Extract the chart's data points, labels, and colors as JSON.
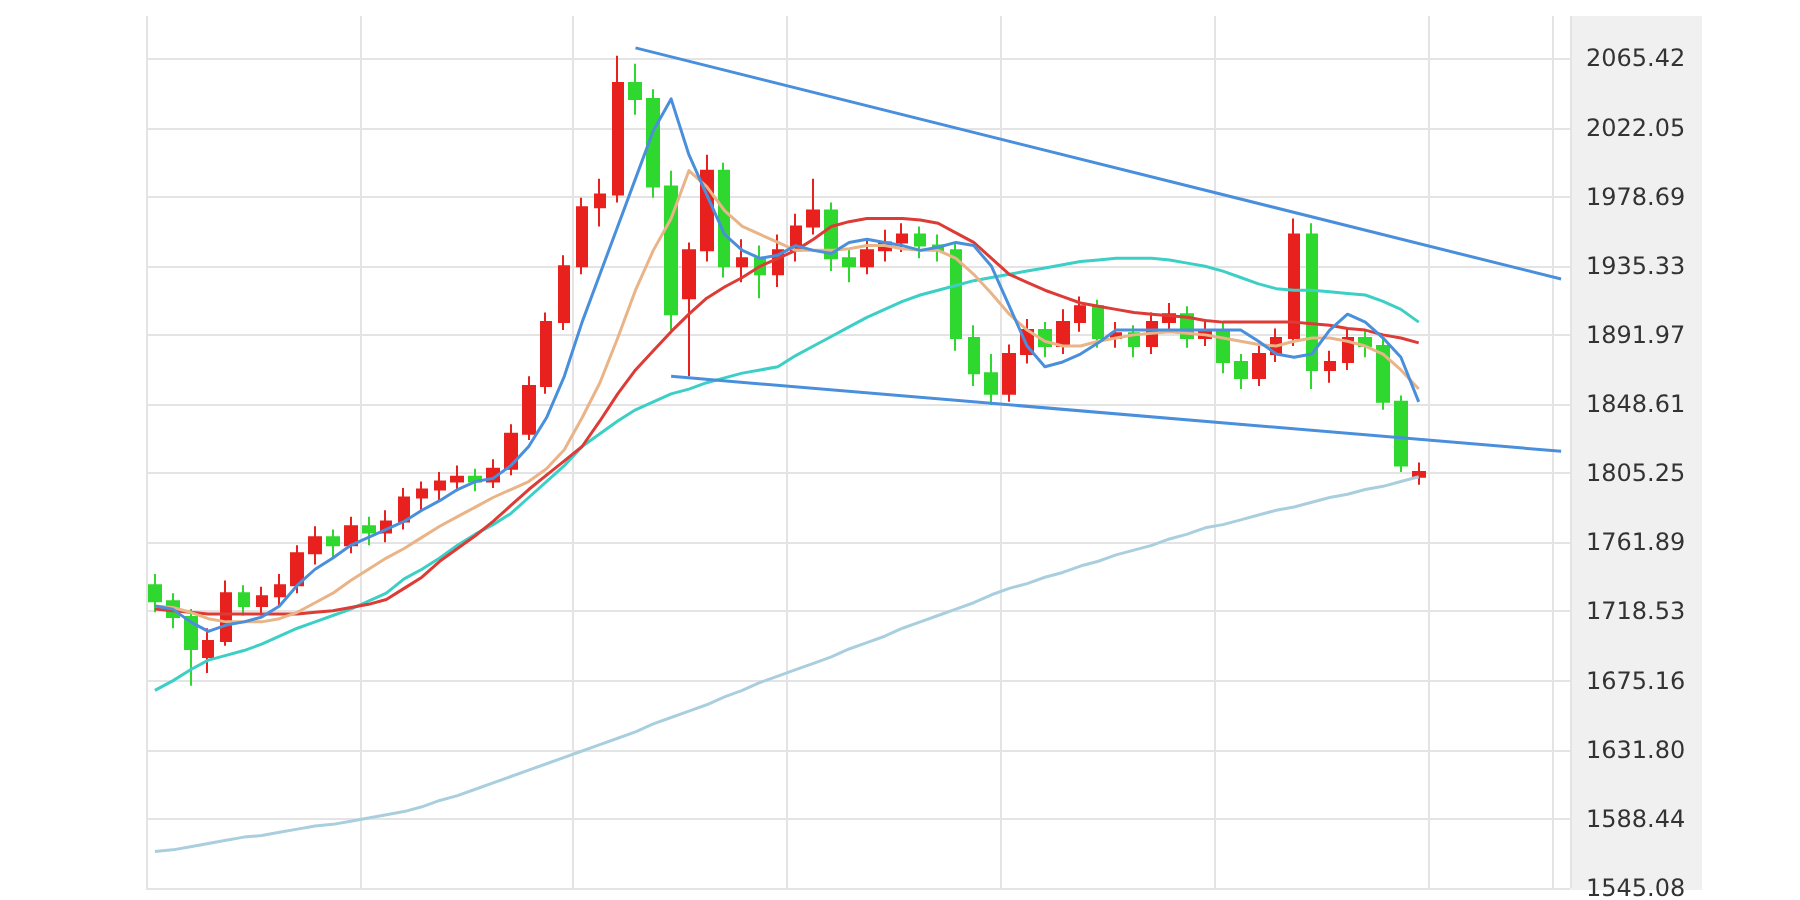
{
  "chart_data": {
    "type": "candlestick",
    "categories": [
      null,
      null,
      null,
      null,
      null,
      null,
      null,
      null,
      null,
      null,
      null,
      null,
      null,
      null,
      null,
      null,
      null,
      null,
      null,
      null,
      null,
      null,
      null,
      null,
      null,
      null,
      null,
      null,
      null,
      null,
      null,
      null,
      null,
      null,
      null,
      null,
      null,
      null,
      null,
      null,
      null,
      null,
      null,
      null,
      null,
      null,
      null,
      null,
      null,
      null,
      null,
      null,
      null,
      null,
      null,
      null,
      null,
      null,
      null,
      null,
      null,
      null,
      null,
      null,
      null,
      null,
      null,
      null,
      null,
      null,
      null,
      null,
      null,
      null,
      null,
      null,
      null,
      null,
      null,
      null
    ],
    "ohlc": [
      [
        1735,
        1742,
        1718,
        1725
      ],
      [
        1725,
        1730,
        1708,
        1715
      ],
      [
        1715,
        1720,
        1672,
        1695
      ],
      [
        1690,
        1708,
        1680,
        1700
      ],
      [
        1700,
        1738,
        1697,
        1730
      ],
      [
        1730,
        1735,
        1716,
        1722
      ],
      [
        1722,
        1734,
        1716,
        1728
      ],
      [
        1728,
        1742,
        1722,
        1735
      ],
      [
        1735,
        1760,
        1730,
        1755
      ],
      [
        1755,
        1772,
        1748,
        1765
      ],
      [
        1765,
        1770,
        1752,
        1760
      ],
      [
        1760,
        1778,
        1755,
        1772
      ],
      [
        1772,
        1778,
        1760,
        1768
      ],
      [
        1768,
        1782,
        1762,
        1775
      ],
      [
        1775,
        1796,
        1770,
        1790
      ],
      [
        1790,
        1800,
        1782,
        1795
      ],
      [
        1795,
        1806,
        1788,
        1800
      ],
      [
        1800,
        1810,
        1794,
        1803
      ],
      [
        1803,
        1808,
        1794,
        1800
      ],
      [
        1800,
        1814,
        1796,
        1808
      ],
      [
        1808,
        1836,
        1804,
        1830
      ],
      [
        1830,
        1866,
        1826,
        1860
      ],
      [
        1860,
        1906,
        1855,
        1900
      ],
      [
        1900,
        1942,
        1895,
        1935
      ],
      [
        1935,
        1978,
        1930,
        1972
      ],
      [
        1972,
        1990,
        1960,
        1980
      ],
      [
        1980,
        2067,
        1975,
        2050
      ],
      [
        2050,
        2062,
        2030,
        2040
      ],
      [
        2040,
        2046,
        1978,
        1985
      ],
      [
        1985,
        1995,
        1895,
        1905
      ],
      [
        1915,
        1950,
        1866,
        1945
      ],
      [
        1945,
        2005,
        1938,
        1995
      ],
      [
        1995,
        2000,
        1928,
        1935
      ],
      [
        1935,
        1952,
        1925,
        1940
      ],
      [
        1940,
        1948,
        1915,
        1930
      ],
      [
        1930,
        1955,
        1922,
        1945
      ],
      [
        1945,
        1968,
        1938,
        1960
      ],
      [
        1960,
        1990,
        1955,
        1970
      ],
      [
        1970,
        1975,
        1932,
        1940
      ],
      [
        1940,
        1946,
        1925,
        1935
      ],
      [
        1935,
        1952,
        1930,
        1945
      ],
      [
        1945,
        1958,
        1938,
        1950
      ],
      [
        1950,
        1962,
        1944,
        1955
      ],
      [
        1955,
        1960,
        1940,
        1948
      ],
      [
        1948,
        1955,
        1938,
        1945
      ],
      [
        1945,
        1950,
        1882,
        1890
      ],
      [
        1890,
        1898,
        1860,
        1868
      ],
      [
        1868,
        1880,
        1848,
        1855
      ],
      [
        1855,
        1886,
        1850,
        1880
      ],
      [
        1880,
        1902,
        1874,
        1895
      ],
      [
        1895,
        1900,
        1878,
        1885
      ],
      [
        1885,
        1908,
        1880,
        1900
      ],
      [
        1900,
        1916,
        1894,
        1910
      ],
      [
        1910,
        1914,
        1884,
        1890
      ],
      [
        1890,
        1900,
        1884,
        1893
      ],
      [
        1893,
        1898,
        1878,
        1885
      ],
      [
        1885,
        1906,
        1880,
        1900
      ],
      [
        1900,
        1912,
        1895,
        1905
      ],
      [
        1905,
        1910,
        1884,
        1890
      ],
      [
        1890,
        1902,
        1885,
        1895
      ],
      [
        1895,
        1900,
        1868,
        1875
      ],
      [
        1875,
        1880,
        1858,
        1865
      ],
      [
        1865,
        1886,
        1860,
        1880
      ],
      [
        1880,
        1896,
        1875,
        1890
      ],
      [
        1890,
        1965,
        1885,
        1955
      ],
      [
        1955,
        1962,
        1858,
        1870
      ],
      [
        1870,
        1882,
        1862,
        1875
      ],
      [
        1875,
        1896,
        1870,
        1890
      ],
      [
        1890,
        1895,
        1878,
        1885
      ],
      [
        1885,
        1890,
        1845,
        1850
      ],
      [
        1850,
        1854,
        1806,
        1810
      ],
      [
        1803,
        1812,
        1798,
        1806
      ],
      null,
      null,
      null,
      null,
      null,
      null,
      null,
      null
    ],
    "colors": [
      "#2fd82f",
      "#2fd82f",
      "#2fd82f",
      "#e8211e",
      "#e8211e",
      "#2fd82f",
      "#e8211e",
      "#e8211e",
      "#e8211e",
      "#e8211e",
      "#2fd82f",
      "#e8211e",
      "#2fd82f",
      "#e8211e",
      "#e8211e",
      "#e8211e",
      "#e8211e",
      "#e8211e",
      "#2fd82f",
      "#e8211e",
      "#e8211e",
      "#e8211e",
      "#e8211e",
      "#e8211e",
      "#e8211e",
      "#e8211e",
      "#e8211e",
      "#2fd82f",
      "#2fd82f",
      "#2fd82f",
      "#e8211e",
      "#e8211e",
      "#2fd82f",
      "#e8211e",
      "#2fd82f",
      "#e8211e",
      "#e8211e",
      "#e8211e",
      "#2fd82f",
      "#2fd82f",
      "#e8211e",
      "#e8211e",
      "#e8211e",
      "#2fd82f",
      "#2fd82f",
      "#2fd82f",
      "#2fd82f",
      "#2fd82f",
      "#e8211e",
      "#e8211e",
      "#2fd82f",
      "#e8211e",
      "#e8211e",
      "#2fd82f",
      "#e8211e",
      "#2fd82f",
      "#e8211e",
      "#e8211e",
      "#2fd82f",
      "#e8211e",
      "#2fd82f",
      "#2fd82f",
      "#e8211e",
      "#e8211e",
      "#e8211e",
      "#2fd82f",
      "#e8211e",
      "#e8211e",
      "#2fd82f",
      "#2fd82f",
      "#2fd82f",
      "#e8211e",
      null,
      null,
      null,
      null,
      null,
      null,
      null,
      null
    ],
    "series": [
      {
        "type": "line",
        "color": "#a9cfdf",
        "values": [
          1568,
          1569,
          1571,
          1573,
          1575,
          1577,
          1578,
          1580,
          1582,
          1584,
          1585,
          1587,
          1589,
          1591,
          1593,
          1596,
          1600,
          1603,
          1607,
          1611,
          1615,
          1619,
          1623,
          1627,
          1631,
          1635,
          1639,
          1643,
          1648,
          1652,
          1656,
          1660,
          1665,
          1669,
          1674,
          1678,
          1682,
          1686,
          1690,
          1695,
          1699,
          1703,
          1708,
          1712,
          1716,
          1720,
          1724,
          1729,
          1733,
          1736,
          1740,
          1743,
          1747,
          1750,
          1754,
          1757,
          1760,
          1764,
          1767,
          1771,
          1773,
          1776,
          1779,
          1782,
          1784,
          1787,
          1790,
          1792,
          1795,
          1797,
          1800,
          1803,
          null,
          null,
          null,
          null,
          null,
          null,
          null,
          null
        ]
      },
      {
        "type": "line",
        "color": "#3ccfc6",
        "values": [
          1669,
          1675,
          1682,
          1688,
          1691,
          1694,
          1698,
          1703,
          1708,
          1712,
          1716,
          1720,
          1725,
          1730,
          1739,
          1745,
          1752,
          1760,
          1767,
          1773,
          1780,
          1790,
          1800,
          1810,
          1822,
          1830,
          1838,
          1845,
          1850,
          1855,
          1858,
          1862,
          1865,
          1868,
          1870,
          1872,
          1879,
          1885,
          1891,
          1897,
          1903,
          1908,
          1913,
          1917,
          1920,
          1923,
          1926,
          1928,
          1930,
          1932,
          1934,
          1936,
          1938,
          1939,
          1940,
          1940,
          1940,
          1939,
          1937,
          1935,
          1932,
          1928,
          1924,
          1921,
          1920,
          1920,
          1919,
          1918,
          1917,
          1913,
          1908,
          1900,
          null,
          null,
          null,
          null,
          null,
          null,
          null,
          null
        ]
      },
      {
        "type": "line",
        "color": "#dd3b35",
        "values": [
          1720,
          1719,
          1718,
          1717,
          1717,
          1717,
          1717,
          1717,
          1717,
          1718,
          1719,
          1721,
          1723,
          1726,
          1733,
          1740,
          1750,
          1758,
          1766,
          1775,
          1785,
          1795,
          1804,
          1813,
          1822,
          1838,
          1855,
          1870,
          1882,
          1894,
          1905,
          1915,
          1922,
          1928,
          1935,
          1940,
          1945,
          1952,
          1960,
          1963,
          1965,
          1965,
          1965,
          1964,
          1962,
          1956,
          1950,
          1940,
          1930,
          1925,
          1920,
          1916,
          1912,
          1910,
          1908,
          1906,
          1905,
          1904,
          1903,
          1901,
          1900,
          1900,
          1900,
          1900,
          1900,
          1899,
          1898,
          1896,
          1895,
          1892,
          1890,
          1887,
          null,
          null,
          null,
          null,
          null,
          null,
          null,
          null
        ]
      },
      {
        "type": "line",
        "color": "#e9b487",
        "values": [
          1722,
          1721,
          1718,
          1714,
          1712,
          1712,
          1712,
          1714,
          1718,
          1724,
          1730,
          1738,
          1745,
          1752,
          1758,
          1765,
          1772,
          1778,
          1784,
          1790,
          1795,
          1800,
          1808,
          1820,
          1840,
          1862,
          1890,
          1920,
          1945,
          1965,
          1995,
          1985,
          1970,
          1960,
          1955,
          1950,
          1945,
          1945,
          1945,
          1946,
          1948,
          1948,
          1946,
          1945,
          1945,
          1940,
          1930,
          1918,
          1905,
          1895,
          1888,
          1885,
          1885,
          1888,
          1890,
          1892,
          1893,
          1894,
          1893,
          1892,
          1890,
          1888,
          1886,
          1885,
          1888,
          1890,
          1890,
          1888,
          1885,
          1880,
          1870,
          1858,
          null,
          null,
          null,
          null,
          null,
          null,
          null,
          null
        ]
      },
      {
        "type": "line",
        "color": "#4a8fdc",
        "values": [
          1722,
          1720,
          1712,
          1706,
          1710,
          1712,
          1715,
          1722,
          1735,
          1745,
          1752,
          1760,
          1765,
          1770,
          1775,
          1782,
          1788,
          1795,
          1800,
          1802,
          1810,
          1822,
          1840,
          1866,
          1900,
          1930,
          1960,
          1990,
          2020,
          2040,
          2005,
          1980,
          1955,
          1945,
          1940,
          1942,
          1948,
          1945,
          1943,
          1950,
          1952,
          1950,
          1948,
          1945,
          1947,
          1950,
          1948,
          1935,
          1910,
          1885,
          1872,
          1875,
          1880,
          1887,
          1895,
          1895,
          1895,
          1895,
          1895,
          1895,
          1895,
          1895,
          1888,
          1880,
          1878,
          1880,
          1895,
          1905,
          1900,
          1890,
          1878,
          1850,
          null,
          null,
          null,
          null,
          null,
          null,
          null,
          null
        ]
      },
      {
        "type": "line",
        "color": "#4a8fdc",
        "values": [
          null,
          null,
          null,
          null,
          null,
          null,
          null,
          null,
          null,
          null,
          null,
          null,
          null,
          null,
          null,
          null,
          null,
          null,
          null,
          null,
          null,
          null,
          null,
          null,
          null,
          null,
          null,
          2072,
          null,
          null,
          null,
          null,
          null,
          null,
          null,
          null,
          null,
          null,
          null,
          null,
          null,
          null,
          null,
          null,
          null,
          null,
          null,
          null,
          null,
          null,
          null,
          null,
          null,
          null,
          null,
          null,
          null,
          null,
          null,
          null,
          null,
          null,
          null,
          null,
          null,
          null,
          null,
          null,
          null,
          null,
          null,
          null,
          null,
          null,
          null,
          null,
          null,
          null,
          null,
          1927
        ]
      },
      {
        "type": "line",
        "color": "#4a8fdc",
        "values": [
          null,
          null,
          null,
          null,
          null,
          null,
          null,
          null,
          null,
          null,
          null,
          null,
          null,
          null,
          null,
          null,
          null,
          null,
          null,
          null,
          null,
          null,
          null,
          null,
          null,
          null,
          null,
          null,
          null,
          1866,
          null,
          null,
          null,
          null,
          null,
          null,
          null,
          null,
          null,
          null,
          null,
          null,
          null,
          null,
          null,
          null,
          null,
          null,
          null,
          null,
          null,
          null,
          null,
          null,
          null,
          null,
          null,
          null,
          null,
          null,
          null,
          null,
          null,
          null,
          null,
          null,
          null,
          null,
          null,
          null,
          null,
          null,
          null,
          null,
          null,
          null,
          null,
          null,
          null,
          1819
        ]
      }
    ],
    "ylim": [
      1545.08,
      2092
    ],
    "yticks": [
      1545.08,
      1588.44,
      {
        "value": 1631.8,
        "label": "1631.80"
      },
      1675.16,
      1718.53,
      1761.89,
      1805.25,
      1848.61,
      1891.97,
      1935.33,
      1978.69,
      2022.05,
      2065.42
    ],
    "tick_labels": "y",
    "grid": true
  }
}
